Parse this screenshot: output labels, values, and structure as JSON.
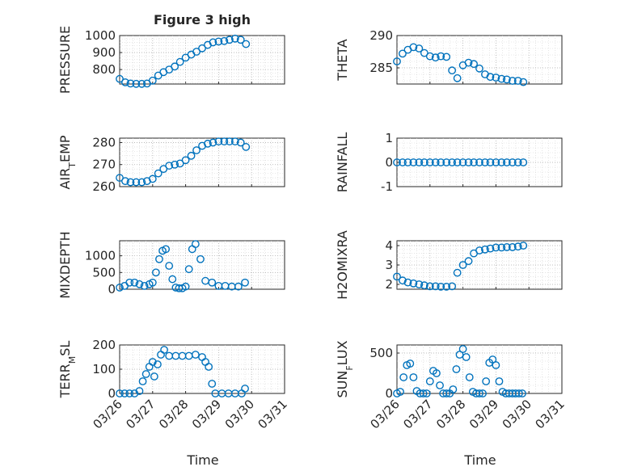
{
  "figure": {
    "title": "Figure 3 high"
  },
  "colors": {
    "series": "#0072BD",
    "axis": "#262626"
  },
  "chart_data": [
    {
      "type": "scatter",
      "title": "Figure 3 high",
      "ylabel": "PRESSURE",
      "xlabel": "",
      "x_type": "date",
      "xlim": [
        "03/26",
        "03/31"
      ],
      "ylim": [
        715,
        1000
      ],
      "yticks": [
        800,
        900,
        1000
      ],
      "x_ticks": [
        "03/26",
        "03/27",
        "03/28",
        "03/29",
        "03/30",
        "03/31"
      ],
      "grid": true,
      "series": [
        {
          "x_days": [
            0.0,
            0.17,
            0.33,
            0.5,
            0.67,
            0.83,
            1.0,
            1.17,
            1.33,
            1.5,
            1.67,
            1.83,
            2.0,
            2.17,
            2.33,
            2.5,
            2.67,
            2.83,
            3.0,
            3.17,
            3.33,
            3.5,
            3.67,
            3.83
          ],
          "y": [
            745,
            725,
            718,
            716,
            716,
            718,
            735,
            765,
            785,
            800,
            818,
            845,
            870,
            888,
            905,
            925,
            945,
            960,
            965,
            968,
            975,
            982,
            975,
            950
          ]
        }
      ]
    },
    {
      "type": "scatter",
      "ylabel": "THETA",
      "xlabel": "",
      "x_type": "date",
      "xlim": [
        "03/26",
        "03/31"
      ],
      "ylim": [
        282.5,
        290
      ],
      "yticks": [
        285,
        290
      ],
      "x_ticks": [
        "03/26",
        "03/27",
        "03/28",
        "03/29",
        "03/30",
        "03/31"
      ],
      "grid": true,
      "series": [
        {
          "x_days": [
            0.0,
            0.17,
            0.33,
            0.5,
            0.67,
            0.83,
            1.0,
            1.17,
            1.33,
            1.5,
            1.67,
            1.83,
            2.0,
            2.17,
            2.33,
            2.5,
            2.67,
            2.83,
            3.0,
            3.17,
            3.33,
            3.5,
            3.67,
            3.83
          ],
          "y": [
            286.0,
            287.2,
            287.8,
            288.2,
            288.0,
            287.3,
            286.8,
            286.6,
            286.8,
            286.7,
            284.6,
            283.4,
            285.4,
            285.8,
            285.6,
            284.9,
            284.0,
            283.6,
            283.5,
            283.3,
            283.2,
            283.0,
            283.0,
            282.8
          ]
        }
      ]
    },
    {
      "type": "scatter",
      "ylabel": "AIR_TEMP",
      "xlabel": "",
      "x_type": "date",
      "xlim": [
        "03/26",
        "03/31"
      ],
      "ylim": [
        260,
        282
      ],
      "yticks": [
        260,
        270,
        280
      ],
      "x_ticks": [
        "03/26",
        "03/27",
        "03/28",
        "03/29",
        "03/30",
        "03/31"
      ],
      "grid": true,
      "series": [
        {
          "x_days": [
            0.0,
            0.17,
            0.33,
            0.5,
            0.67,
            0.83,
            1.0,
            1.17,
            1.33,
            1.5,
            1.67,
            1.83,
            2.0,
            2.17,
            2.33,
            2.5,
            2.67,
            2.83,
            3.0,
            3.17,
            3.33,
            3.5,
            3.67,
            3.83
          ],
          "y": [
            264.0,
            262.5,
            262.0,
            262.0,
            262.0,
            262.5,
            263.5,
            266.0,
            268.0,
            269.5,
            270.0,
            270.5,
            272.0,
            274.0,
            276.5,
            278.5,
            279.5,
            280.0,
            280.5,
            280.5,
            280.5,
            280.5,
            280.0,
            278.0
          ]
        }
      ]
    },
    {
      "type": "scatter",
      "ylabel": "RAINFALL",
      "xlabel": "",
      "x_type": "date",
      "xlim": [
        "03/26",
        "03/31"
      ],
      "ylim": [
        -1,
        1
      ],
      "yticks": [
        -1,
        0,
        1
      ],
      "x_ticks": [
        "03/26",
        "03/27",
        "03/28",
        "03/29",
        "03/30",
        "03/31"
      ],
      "grid": true,
      "series": [
        {
          "x_days": [
            0.0,
            0.17,
            0.33,
            0.5,
            0.67,
            0.83,
            1.0,
            1.17,
            1.33,
            1.5,
            1.67,
            1.83,
            2.0,
            2.17,
            2.33,
            2.5,
            2.67,
            2.83,
            3.0,
            3.17,
            3.33,
            3.5,
            3.67,
            3.83
          ],
          "y": [
            0,
            0,
            0,
            0,
            0,
            0,
            0,
            0,
            0,
            0,
            0,
            0,
            0,
            0,
            0,
            0,
            0,
            0,
            0,
            0,
            0,
            0,
            0,
            0
          ]
        }
      ]
    },
    {
      "type": "scatter",
      "ylabel": "MIXDEPTH",
      "xlabel": "",
      "x_type": "date",
      "xlim": [
        "03/26",
        "03/31"
      ],
      "ylim": [
        0,
        1450
      ],
      "yticks": [
        0,
        500,
        1000
      ],
      "x_ticks": [
        "03/26",
        "03/27",
        "03/28",
        "03/29",
        "03/30",
        "03/31"
      ],
      "grid": true,
      "series": [
        {
          "x_days": [
            0.0,
            0.15,
            0.3,
            0.45,
            0.6,
            0.75,
            0.9,
            1.0,
            1.1,
            1.2,
            1.3,
            1.4,
            1.5,
            1.6,
            1.7,
            1.8,
            1.9,
            2.0,
            2.1,
            2.2,
            2.3,
            2.45,
            2.6,
            2.8,
            3.0,
            3.2,
            3.4,
            3.6,
            3.8
          ],
          "y": [
            50,
            100,
            200,
            200,
            150,
            100,
            150,
            200,
            500,
            900,
            1150,
            1200,
            700,
            300,
            50,
            30,
            30,
            80,
            600,
            1200,
            1350,
            900,
            250,
            200,
            100,
            100,
            80,
            80,
            200
          ]
        }
      ]
    },
    {
      "type": "scatter",
      "ylabel": "H2OMIXRA",
      "xlabel": "",
      "x_type": "date",
      "xlim": [
        "03/26",
        "03/31"
      ],
      "ylim": [
        1.75,
        4.25
      ],
      "yticks": [
        2,
        3,
        4
      ],
      "x_ticks": [
        "03/26",
        "03/27",
        "03/28",
        "03/29",
        "03/30",
        "03/31"
      ],
      "grid": true,
      "series": [
        {
          "x_days": [
            0.0,
            0.17,
            0.33,
            0.5,
            0.67,
            0.83,
            1.0,
            1.17,
            1.33,
            1.5,
            1.67,
            1.83,
            2.0,
            2.17,
            2.33,
            2.5,
            2.67,
            2.83,
            3.0,
            3.17,
            3.33,
            3.5,
            3.67,
            3.83
          ],
          "y": [
            2.4,
            2.2,
            2.1,
            2.05,
            2.0,
            1.95,
            1.9,
            1.9,
            1.88,
            1.88,
            1.9,
            2.6,
            3.0,
            3.2,
            3.6,
            3.75,
            3.8,
            3.85,
            3.9,
            3.9,
            3.92,
            3.92,
            3.95,
            4.0
          ]
        }
      ]
    },
    {
      "type": "scatter",
      "ylabel": "TERR_MSL",
      "xlabel": "",
      "x_type": "date",
      "xlim": [
        "03/26",
        "03/31"
      ],
      "ylim": [
        0,
        200
      ],
      "yticks": [
        0,
        100,
        200
      ],
      "x_ticks": [
        "03/26",
        "03/27",
        "03/28",
        "03/29",
        "03/30",
        "03/31"
      ],
      "grid": true,
      "series": [
        {
          "x_days": [
            0.0,
            0.15,
            0.3,
            0.45,
            0.6,
            0.7,
            0.8,
            0.9,
            1.0,
            1.05,
            1.15,
            1.25,
            1.35,
            1.5,
            1.7,
            1.9,
            2.1,
            2.3,
            2.5,
            2.6,
            2.7,
            2.8,
            2.9,
            3.1,
            3.3,
            3.5,
            3.7,
            3.8
          ],
          "y": [
            0,
            0,
            0,
            0,
            10,
            50,
            80,
            110,
            130,
            70,
            120,
            160,
            180,
            155,
            155,
            155,
            155,
            160,
            150,
            130,
            110,
            40,
            0,
            0,
            0,
            0,
            0,
            20
          ]
        }
      ]
    },
    {
      "type": "scatter",
      "ylabel": "SUN_FLUX",
      "xlabel": "",
      "x_type": "date",
      "xlim": [
        "03/26",
        "03/31"
      ],
      "ylim": [
        0,
        600
      ],
      "yticks": [
        0,
        500
      ],
      "x_ticks": [
        "03/26",
        "03/27",
        "03/28",
        "03/29",
        "03/30",
        "03/31"
      ],
      "grid": true,
      "series": [
        {
          "x_days": [
            0.0,
            0.1,
            0.2,
            0.3,
            0.4,
            0.5,
            0.6,
            0.7,
            0.8,
            0.9,
            1.0,
            1.1,
            1.2,
            1.3,
            1.4,
            1.5,
            1.6,
            1.7,
            1.8,
            1.9,
            2.0,
            2.1,
            2.2,
            2.3,
            2.4,
            2.5,
            2.6,
            2.7,
            2.8,
            2.9,
            3.0,
            3.1,
            3.2,
            3.3,
            3.4,
            3.5,
            3.6,
            3.7,
            3.8
          ],
          "y": [
            0,
            20,
            200,
            350,
            370,
            200,
            30,
            0,
            0,
            0,
            150,
            280,
            250,
            100,
            0,
            0,
            0,
            50,
            300,
            480,
            550,
            450,
            200,
            20,
            0,
            0,
            0,
            150,
            380,
            420,
            350,
            150,
            20,
            0,
            0,
            0,
            0,
            0,
            0
          ]
        }
      ]
    }
  ],
  "axes": {
    "xlabel": "Time",
    "tick_labels": [
      "03/26",
      "03/27",
      "03/28",
      "03/29",
      "03/30",
      "03/31"
    ]
  }
}
